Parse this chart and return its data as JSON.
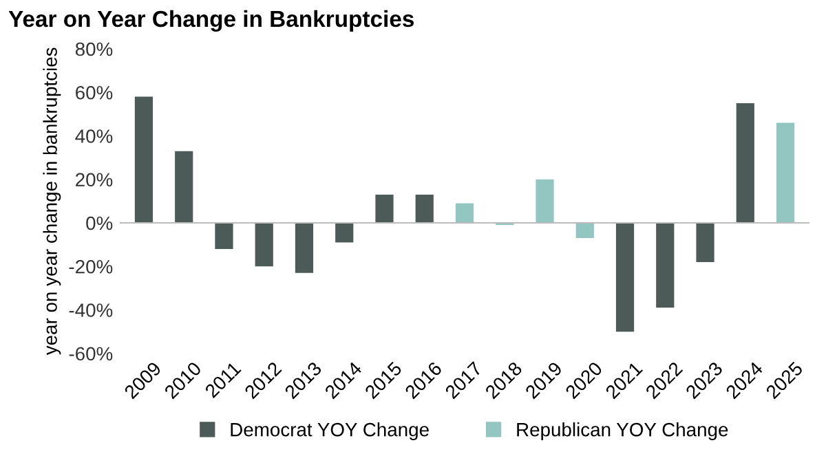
{
  "chart_data": {
    "type": "bar",
    "title": "Year on Year Change in Bankruptcies",
    "ylabel": "year on year change in bankruptcies",
    "categories": [
      "2009",
      "2010",
      "2011",
      "2012",
      "2013",
      "2014",
      "2015",
      "2016",
      "2017",
      "2018",
      "2019",
      "2020",
      "2021",
      "2022",
      "2023",
      "2024",
      "2025"
    ],
    "series": [
      {
        "name": "Democrat YOY Change",
        "color": "#4d5b58",
        "values": [
          58,
          33,
          -12,
          -20,
          -23,
          -9,
          13,
          13,
          null,
          null,
          null,
          null,
          -50,
          -39,
          -18,
          55,
          null
        ]
      },
      {
        "name": "Republican YOY Change",
        "color": "#93c6c1",
        "values": [
          null,
          null,
          null,
          null,
          null,
          null,
          null,
          null,
          9,
          -1,
          20,
          -7,
          null,
          null,
          null,
          null,
          46
        ]
      }
    ],
    "ylim": [
      -60,
      80
    ],
    "yticks": [
      {
        "value": -60,
        "label": "-60%"
      },
      {
        "value": -40,
        "label": "-40%"
      },
      {
        "value": -20,
        "label": "-20%"
      },
      {
        "value": 0,
        "label": "0%"
      },
      {
        "value": 20,
        "label": "20%"
      },
      {
        "value": 40,
        "label": "40%"
      },
      {
        "value": 60,
        "label": "60%"
      },
      {
        "value": 80,
        "label": "80%"
      }
    ],
    "legend": "bottom"
  }
}
